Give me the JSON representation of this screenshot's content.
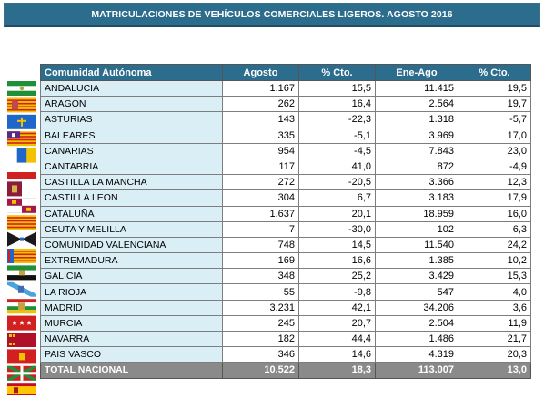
{
  "title": "MATRICULACIONES DE VEHÍCULOS COMERCIALES LIGEROS. AGOSTO 2016",
  "columns": [
    "Comunidad Autónoma",
    "Agosto",
    "% Cto.",
    "Ene-Ago",
    "% Cto."
  ],
  "rows": [
    {
      "name": "ANDALUCIA",
      "agosto": "1.167",
      "cto1": "15,5",
      "eneago": "11.415",
      "cto2": "19,5",
      "flag": "andalucia-flag"
    },
    {
      "name": "ARAGON",
      "agosto": "262",
      "cto1": "16,4",
      "eneago": "2.564",
      "cto2": "19,7",
      "flag": "aragon-flag"
    },
    {
      "name": "ASTURIAS",
      "agosto": "143",
      "cto1": "-22,3",
      "eneago": "1.318",
      "cto2": "-5,7",
      "flag": "asturias-flag"
    },
    {
      "name": "BALEARES",
      "agosto": "335",
      "cto1": "-5,1",
      "eneago": "3.969",
      "cto2": "17,0",
      "flag": "baleares-flag"
    },
    {
      "name": "CANARIAS",
      "agosto": "954",
      "cto1": "-4,5",
      "eneago": "7.843",
      "cto2": "23,0",
      "flag": "canarias-flag"
    },
    {
      "name": "CANTABRIA",
      "agosto": "117",
      "cto1": "41,0",
      "eneago": "872",
      "cto2": "-4,9",
      "flag": "cantabria-flag"
    },
    {
      "name": "CASTILLA LA MANCHA",
      "agosto": "272",
      "cto1": "-20,5",
      "eneago": "3.366",
      "cto2": "12,3",
      "flag": "castilla-la-mancha-flag"
    },
    {
      "name": "CASTILLA LEON",
      "agosto": "304",
      "cto1": "6,7",
      "eneago": "3.183",
      "cto2": "17,9",
      "flag": "castilla-leon-flag"
    },
    {
      "name": "CATALUÑA",
      "agosto": "1.637",
      "cto1": "20,1",
      "eneago": "18.959",
      "cto2": "16,0",
      "flag": "cataluna-flag"
    },
    {
      "name": "CEUTA Y MELILLA",
      "agosto": "7",
      "cto1": "-30,0",
      "eneago": "102",
      "cto2": "6,3",
      "flag": "ceuta-melilla-flag"
    },
    {
      "name": "COMUNIDAD VALENCIANA",
      "agosto": "748",
      "cto1": "14,5",
      "eneago": "11.540",
      "cto2": "24,2",
      "flag": "valencia-flag"
    },
    {
      "name": "EXTREMADURA",
      "agosto": "169",
      "cto1": "16,6",
      "eneago": "1.385",
      "cto2": "10,2",
      "flag": "extremadura-flag"
    },
    {
      "name": "GALICIA",
      "agosto": "348",
      "cto1": "25,2",
      "eneago": "3.429",
      "cto2": "15,3",
      "flag": "galicia-flag"
    },
    {
      "name": "LA RIOJA",
      "agosto": "55",
      "cto1": "-9,8",
      "eneago": "547",
      "cto2": "4,0",
      "flag": "la-rioja-flag"
    },
    {
      "name": "MADRID",
      "agosto": "3.231",
      "cto1": "42,1",
      "eneago": "34.206",
      "cto2": "3,6",
      "flag": "madrid-flag"
    },
    {
      "name": "MURCIA",
      "agosto": "245",
      "cto1": "20,7",
      "eneago": "2.504",
      "cto2": "11,9",
      "flag": "murcia-flag"
    },
    {
      "name": "NAVARRA",
      "agosto": "182",
      "cto1": "44,4",
      "eneago": "1.486",
      "cto2": "21,7",
      "flag": "navarra-flag"
    },
    {
      "name": "PAIS VASCO",
      "agosto": "346",
      "cto1": "14,6",
      "eneago": "4.319",
      "cto2": "20,3",
      "flag": "pais-vasco-flag"
    }
  ],
  "total": {
    "name": "TOTAL NACIONAL",
    "agosto": "10.522",
    "cto1": "18,3",
    "eneago": "113.007",
    "cto2": "13,0",
    "flag": "spain-flag"
  },
  "colors": {
    "header_bg": "#2c6c8c",
    "name_cell_bg": "#daeef5",
    "total_bg": "#8a8a8a"
  }
}
